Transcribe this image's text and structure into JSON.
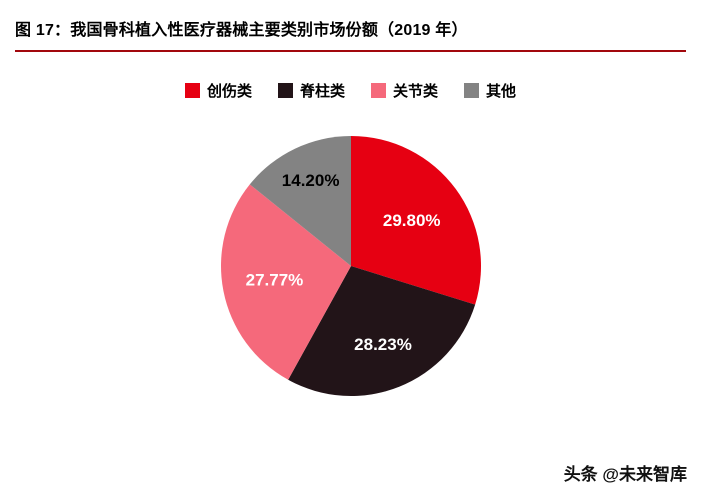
{
  "page": {
    "title": "图 17：我国骨科植入性医疗器械主要类别市场份额（2019 年）",
    "watermark": "头条 @未来智库"
  },
  "colors": {
    "title_rule": "#A2080D",
    "background": "#ffffff"
  },
  "chart_data": {
    "type": "pie",
    "title": "我国骨科植入性医疗器械主要类别市场份额（2019 年）",
    "categories": [
      "创伤类",
      "脊柱类",
      "关节类",
      "其他"
    ],
    "values": [
      29.8,
      28.23,
      27.77,
      14.2
    ],
    "labels": [
      "29.80%",
      "28.23%",
      "27.77%",
      "14.20%"
    ],
    "colors": [
      "#E60012",
      "#221418",
      "#F5697B",
      "#838383"
    ],
    "label_colors": [
      "#ffffff",
      "#ffffff",
      "#ffffff",
      "#000000"
    ],
    "start_angle_deg": 0,
    "direction": "clockwise",
    "legend_position": "top",
    "legend_entries": [
      "创伤类",
      "脊柱类",
      "关节类",
      "其他"
    ]
  }
}
